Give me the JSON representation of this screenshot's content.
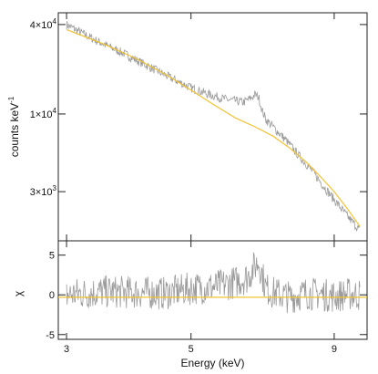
{
  "chart_data": [
    {
      "type": "line",
      "panel": "spectrum",
      "ylabel": "counts keV",
      "ylabel_sup": "-1",
      "xscale": "log",
      "yscale": "log",
      "xlim": [
        2.9,
        10.3
      ],
      "ylim": [
        1400,
        48000
      ],
      "xticks": [
        3,
        5,
        9
      ],
      "yticks": [
        {
          "value": 40000,
          "mantissa": "4",
          "exponent": "4"
        },
        {
          "value": 10000,
          "mantissa": "1",
          "exponent": "4"
        },
        {
          "value": 3000,
          "mantissa": "3",
          "exponent": "3"
        }
      ],
      "series": [
        {
          "role": "data",
          "color": "#9a9a9a",
          "x": [
            3.0,
            3.2,
            3.4,
            3.6,
            3.8,
            4.0,
            4.3,
            4.6,
            5.0,
            5.4,
            5.8,
            6.2,
            6.4,
            6.5,
            6.6,
            6.7,
            6.8,
            7.0,
            7.4,
            7.8,
            8.2,
            8.6,
            9.0,
            9.5,
            10.0
          ],
          "y": [
            40000,
            35000,
            31000,
            28000,
            25500,
            23000,
            20000,
            17500,
            15000,
            13500,
            12500,
            12000,
            12800,
            13500,
            13000,
            10500,
            9200,
            8200,
            6600,
            5200,
            4200,
            3300,
            2650,
            2050,
            1650
          ]
        },
        {
          "role": "model",
          "color": "#f2c230",
          "x": [
            3.0,
            3.5,
            4.0,
            4.5,
            5.0,
            5.5,
            6.0,
            6.5,
            7.0,
            7.5,
            8.0,
            8.5,
            9.0,
            9.5,
            10.0
          ],
          "y": [
            37000,
            29500,
            23500,
            18500,
            14500,
            11500,
            9400,
            8200,
            7100,
            5900,
            4800,
            3800,
            3000,
            2300,
            1750
          ]
        }
      ]
    },
    {
      "type": "line",
      "panel": "residuals",
      "xlabel": "Energy (keV)",
      "ylabel": "χ",
      "xscale": "log",
      "xlim": [
        2.9,
        10.3
      ],
      "ylim": [
        -5.6,
        6.8
      ],
      "xticks": [
        3,
        5,
        9
      ],
      "yticks": [
        5,
        0,
        -5
      ],
      "reference_line": {
        "y": -0.3,
        "color": "#f2c230"
      },
      "series": [
        {
          "role": "residual",
          "color": "#9a9a9a",
          "x": [
            3.0,
            3.5,
            4.0,
            4.5,
            5.0,
            5.5,
            6.0,
            6.3,
            6.5,
            6.6,
            6.7,
            6.8,
            7.0,
            7.5,
            8.0,
            8.5,
            9.0,
            9.5,
            10.0
          ],
          "y": [
            0,
            0.4,
            0.3,
            0.2,
            0.8,
            1.0,
            1.6,
            2.2,
            3.6,
            4.2,
            2.5,
            0.8,
            0.3,
            -0.3,
            0.2,
            0.1,
            -0.2,
            0.1,
            0
          ]
        }
      ]
    }
  ]
}
